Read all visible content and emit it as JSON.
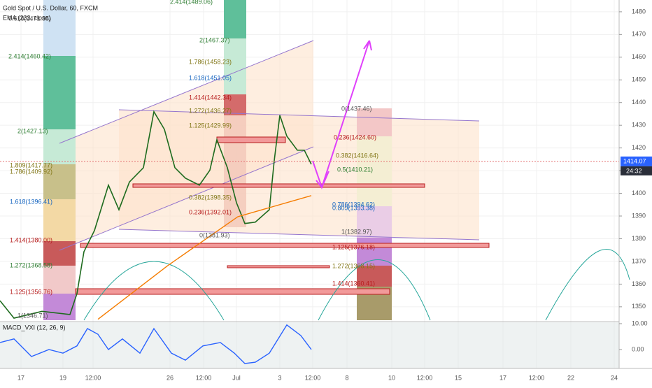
{
  "chart_data": {
    "type": "line",
    "title": "Gold Spot / U.S. Dollar, 60, FXCM",
    "subtitle": "EMA (233, close)",
    "xlim": [
      0,
      885
    ],
    "xticks": [
      {
        "value": 30,
        "label": "17"
      },
      {
        "value": 90,
        "label": "19"
      },
      {
        "value": 133,
        "label": "12:00"
      },
      {
        "value": 243,
        "label": "26"
      },
      {
        "value": 291,
        "label": "12:00"
      },
      {
        "value": 338,
        "label": "Jul"
      },
      {
        "value": 400,
        "label": "3"
      },
      {
        "value": 447,
        "label": "12:00"
      },
      {
        "value": 496,
        "label": "8"
      },
      {
        "value": 560,
        "label": "10"
      },
      {
        "value": 607,
        "label": "12:00"
      },
      {
        "value": 655,
        "label": "15"
      },
      {
        "value": 719,
        "label": "17"
      },
      {
        "value": 767,
        "label": "12:00"
      },
      {
        "value": 816,
        "label": "22"
      },
      {
        "value": 878,
        "label": "24"
      }
    ],
    "ylim": [
      1344.1,
      1485.2
    ],
    "yticks": [
      1350,
      1360,
      1370,
      1380,
      1390,
      1400,
      1410,
      1420,
      1430,
      1440,
      1450,
      1460,
      1470,
      1480
    ],
    "grid": true,
    "last_price": {
      "value": 1414.07,
      "label": "1414.07"
    },
    "countdown": "24:32",
    "series": [
      {
        "name": "Gold Spot / U.S. Dollar",
        "color": "#1e6b1e",
        "x": [
          0,
          20,
          60,
          100,
          110,
          120,
          135,
          155,
          170,
          185,
          205,
          220,
          235,
          250,
          265,
          285,
          300,
          310,
          325,
          338,
          350,
          365,
          385,
          392,
          400,
          410,
          425,
          435,
          445
        ],
        "values": [
          1352.7,
          1345,
          1348,
          1346.6,
          1355.8,
          1374.3,
          1383.6,
          1403.6,
          1392.8,
          1405,
          1411.3,
          1436,
          1428.2,
          1411.3,
          1406.7,
          1403.6,
          1410.2,
          1423.6,
          1411.3,
          1395.9,
          1386.7,
          1387.3,
          1392.8,
          1414.4,
          1434.4,
          1425.2,
          1419,
          1419,
          1412.8
        ]
      },
      {
        "name": "EMA (233, close)",
        "color": "#f57c00",
        "x": [
          140,
          240,
          340,
          445
        ],
        "values": [
          1344.5,
          1368.2,
          1389.7,
          1399
        ]
      },
      {
        "name": "MACD_VXI (12, 26, 9)",
        "color": "#2962ff",
        "axis": "y2",
        "x": [
          0,
          20,
          45,
          70,
          90,
          110,
          125,
          140,
          155,
          175,
          200,
          220,
          245,
          265,
          290,
          315,
          335,
          350,
          365,
          385,
          410,
          430,
          445
        ],
        "values": [
          2.7,
          4.1,
          -2.7,
          0,
          -1.4,
          1.4,
          8.1,
          5.9,
          0,
          4.1,
          -1.4,
          8.1,
          -1.4,
          -4.1,
          1.4,
          2.7,
          -1.4,
          -5.4,
          -4.9,
          -1.4,
          9.5,
          5.4,
          0
        ]
      }
    ],
    "y2lim": [
      -7.3,
      10.8
    ],
    "y2ticks": [
      {
        "value": 10,
        "label": "10.00"
      },
      {
        "value": 0,
        "label": "0.00"
      }
    ],
    "annotations": [
      "0.618(1471.85)",
      "2.414(1460.42)",
      "2(1427.13)",
      "1.809(1417.77)",
      "1.786(1409.92)",
      "1.618(1396.41)",
      "1.414(1380.00)",
      "1.272(1368.58)",
      "1.125(1356.76)",
      "1(1346.71)",
      "2.414(1489.06)",
      "2(1467.37)",
      "1.786(1458.23)",
      "1.618(1451.05)",
      "1.414(1442.34)",
      "1.272(1436.27)",
      "1.125(1429.99)",
      "0.382(1398.35)",
      "0.236(1392.01)",
      "0(1381.93)",
      "0(1437.46)",
      "0.236(1424.60)",
      "0.382(1416.64)",
      "0.5(1410.21)",
      "0.786(1394.62)",
      "0.809(1393.38)",
      "1(1382.97)",
      "1.125(1376.18)",
      "1.272(1368.15)",
      "1.414(1360.41)"
    ]
  }
}
